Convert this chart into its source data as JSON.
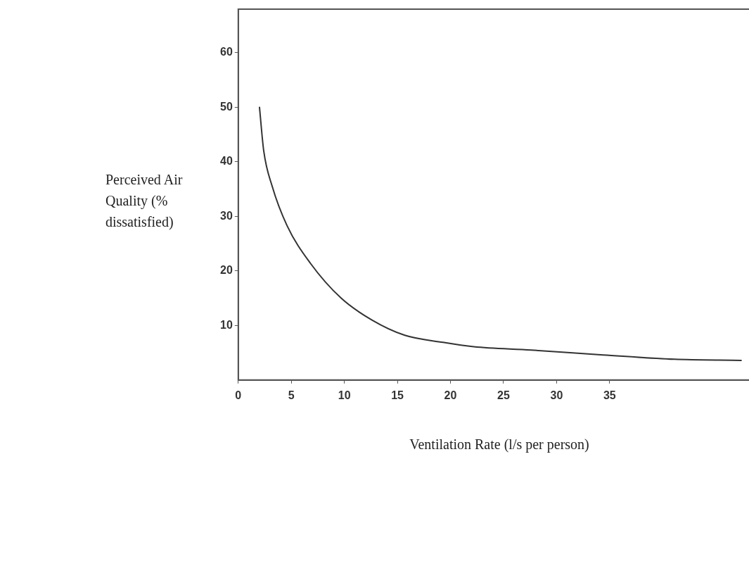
{
  "chart_data": {
    "type": "line",
    "xlabel": "Ventilation Rate (l/s per person)",
    "ylabel": "Perceived Air Quality (% dissatisfied)",
    "x": [
      2.0,
      2.4,
      3.2,
      4.6,
      6.8,
      9.7,
      12.6,
      15.7,
      19.3,
      22.2,
      27.6,
      34.4,
      41.1,
      47.4
    ],
    "series": [
      {
        "color": "#333333",
        "values": [
          50,
          42,
          35.5,
          28.3,
          21.4,
          15,
          11,
          8.2,
          6.9,
          6.1,
          5.5,
          4.6,
          3.8,
          3.6
        ]
      }
    ],
    "xlim": [
      0,
      49
    ],
    "xticks": [
      0,
      5,
      10,
      15,
      20,
      25,
      30,
      35
    ],
    "ylim": [
      0,
      68
    ],
    "yticks": [
      10,
      20,
      30,
      40,
      50,
      60
    ],
    "grid": false,
    "legend": false,
    "marker": "none",
    "line_style": "solid"
  }
}
